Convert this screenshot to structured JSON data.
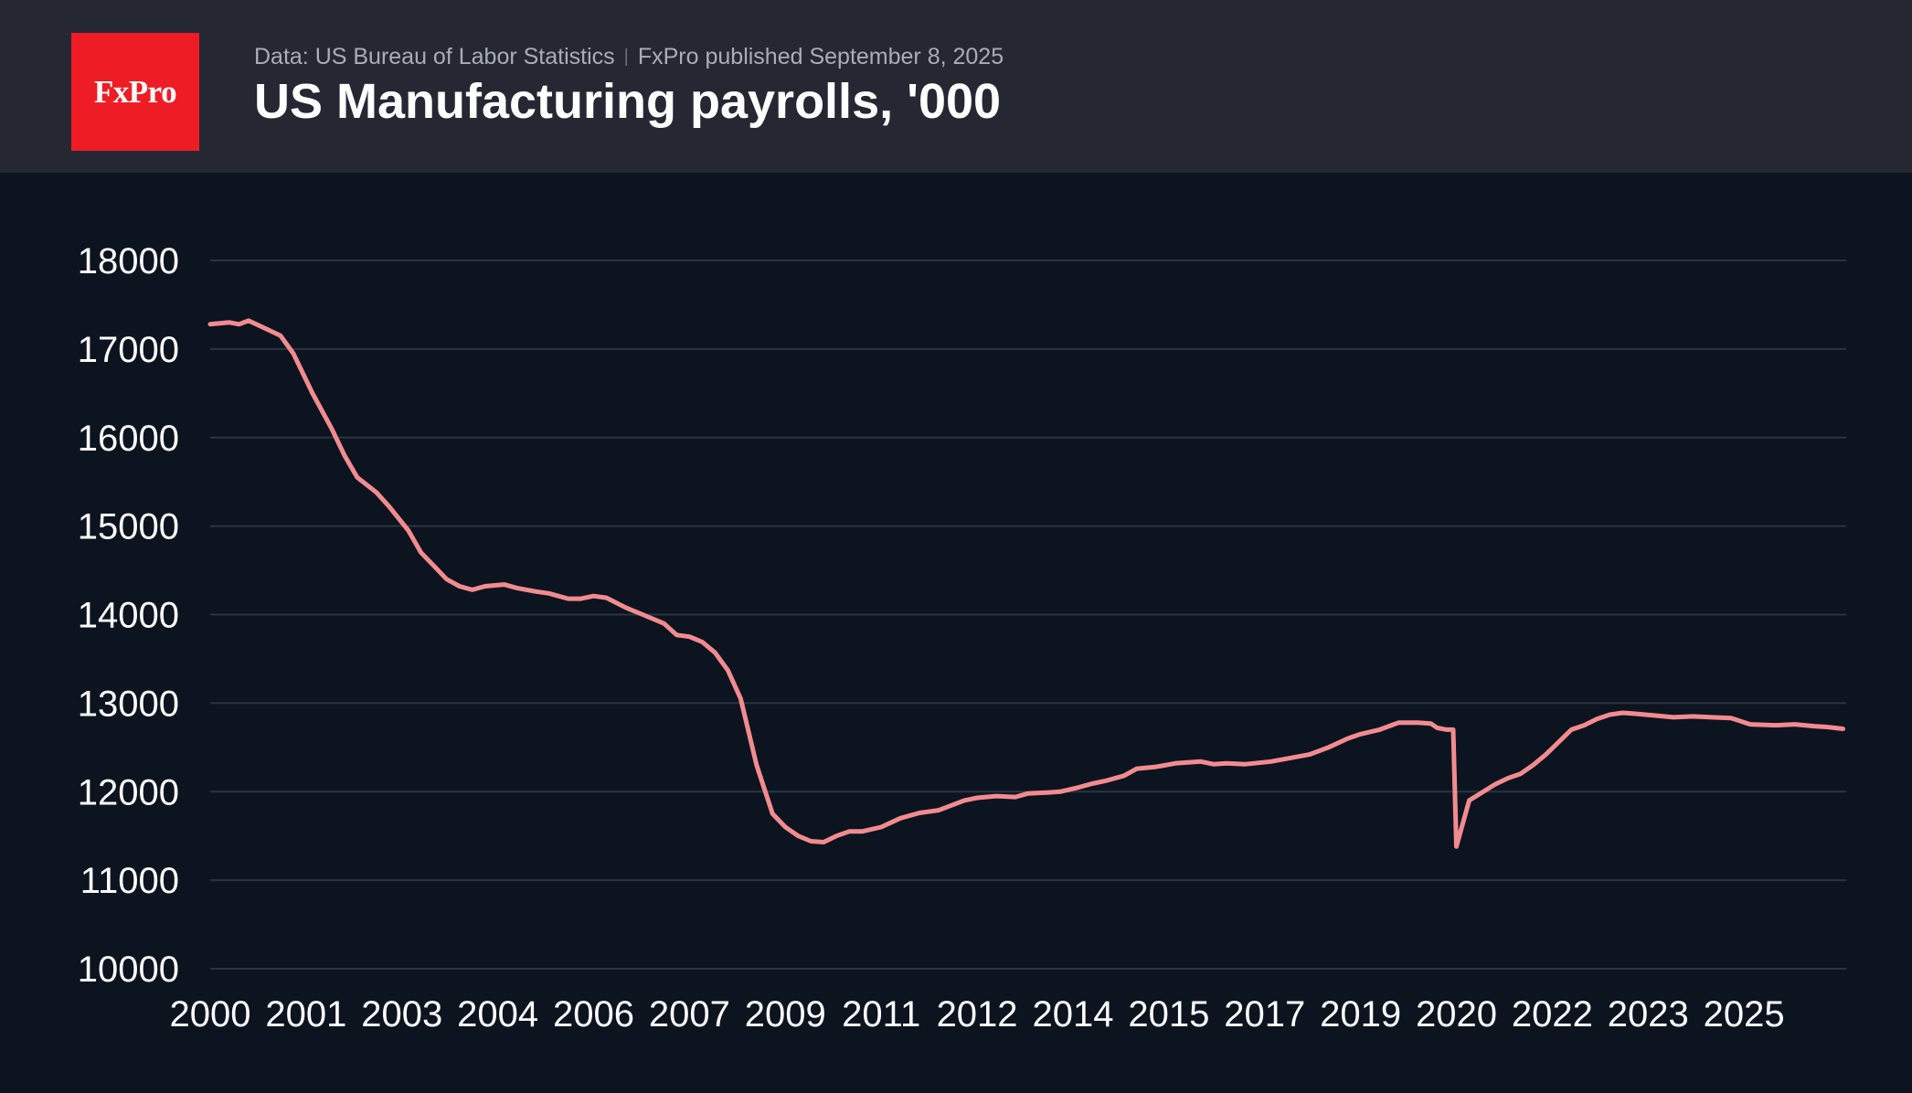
{
  "header": {
    "logo_text": "FxPro",
    "source": "Data: US Bureau of Labor Statistics",
    "published": "FxPro published September 8, 2025",
    "title": "US Manufacturing payrolls, '000"
  },
  "colors": {
    "header_bg": "#252833",
    "plot_bg": "#0c1420",
    "line": "#f28b8f",
    "brand_red": "#ee1c25",
    "grid": "#2a3442"
  },
  "chart_data": {
    "type": "line",
    "title": "US Manufacturing payrolls, '000",
    "xlabel": "",
    "ylabel": "",
    "ylim": [
      10000,
      18000
    ],
    "xlim": [
      2000.0,
      2025.6
    ],
    "grid": true,
    "legend": "none",
    "y_ticks": [
      10000,
      11000,
      12000,
      13000,
      14000,
      15000,
      16000,
      17000,
      18000
    ],
    "x_tick_labels": [
      "2000",
      "2001",
      "2003",
      "2004",
      "2006",
      "2007",
      "2009",
      "2011",
      "2012",
      "2014",
      "2015",
      "2017",
      "2019",
      "2020",
      "2022",
      "2023",
      "2025"
    ],
    "x_tick_values": [
      2000.0,
      2001.5,
      2003.0,
      2004.5,
      2006.0,
      2007.5,
      2009.0,
      2010.5,
      2012.0,
      2013.5,
      2015.0,
      2016.5,
      2018.0,
      2019.5,
      2021.0,
      2022.5,
      2024.0
    ],
    "series": [
      {
        "x": [
          2000.0,
          2000.3,
          2000.45,
          2000.6,
          2000.9,
          2001.1,
          2001.3,
          2001.6,
          2001.9,
          2002.1,
          2002.3,
          2002.6,
          2002.8,
          2003.1,
          2003.3,
          2003.5,
          2003.7,
          2003.9,
          2004.1,
          2004.3,
          2004.6,
          2004.8,
          2005.1,
          2005.3,
          2005.6,
          2005.8,
          2006.0,
          2006.2,
          2006.5,
          2006.8,
          2007.1,
          2007.3,
          2007.5,
          2007.7,
          2007.9,
          2008.1,
          2008.3,
          2008.55,
          2008.8,
          2009.0,
          2009.2,
          2009.4,
          2009.6,
          2009.8,
          2010.0,
          2010.2,
          2010.5,
          2010.8,
          2011.1,
          2011.4,
          2011.8,
          2012.0,
          2012.3,
          2012.6,
          2012.8,
          2013.1,
          2013.3,
          2013.6,
          2013.8,
          2014.0,
          2014.3,
          2014.5,
          2014.8,
          2015.1,
          2015.3,
          2015.5,
          2015.7,
          2015.9,
          2016.2,
          2016.6,
          2016.9,
          2017.2,
          2017.5,
          2017.8,
          2018.0,
          2018.3,
          2018.6,
          2018.9,
          2019.1,
          2019.2,
          2019.35,
          2019.45,
          2019.5,
          2019.7,
          2019.9,
          2020.1,
          2020.3,
          2020.5,
          2020.7,
          2020.9,
          2021.1,
          2021.3,
          2021.5,
          2021.7,
          2021.9,
          2022.1,
          2022.3,
          2022.6,
          2022.9,
          2023.2,
          2023.5,
          2023.8,
          2024.1,
          2024.5,
          2024.8,
          2025.1,
          2025.3,
          2025.55
        ],
        "values": [
          17280,
          17300,
          17280,
          17320,
          17220,
          17150,
          16950,
          16500,
          16100,
          15800,
          15550,
          15380,
          15220,
          14950,
          14700,
          14550,
          14400,
          14320,
          14280,
          14320,
          14340,
          14300,
          14260,
          14240,
          14180,
          14180,
          14210,
          14190,
          14080,
          13990,
          13900,
          13770,
          13750,
          13690,
          13570,
          13370,
          13050,
          12300,
          11750,
          11600,
          11500,
          11440,
          11430,
          11500,
          11550,
          11550,
          11600,
          11700,
          11760,
          11790,
          11900,
          11930,
          11950,
          11940,
          11980,
          11990,
          12000,
          12050,
          12090,
          12120,
          12180,
          12260,
          12280,
          12320,
          12330,
          12340,
          12310,
          12320,
          12310,
          12340,
          12380,
          12420,
          12500,
          12600,
          12650,
          12700,
          12780,
          12780,
          12770,
          12720,
          12700,
          12700,
          11380,
          11900,
          11990,
          12080,
          12150,
          12200,
          12300,
          12420,
          12560,
          12700,
          12750,
          12820,
          12870,
          12890,
          12880,
          12860,
          12840,
          12850,
          12840,
          12830,
          12760,
          12750,
          12760,
          12740,
          12730,
          12710
        ]
      }
    ]
  }
}
